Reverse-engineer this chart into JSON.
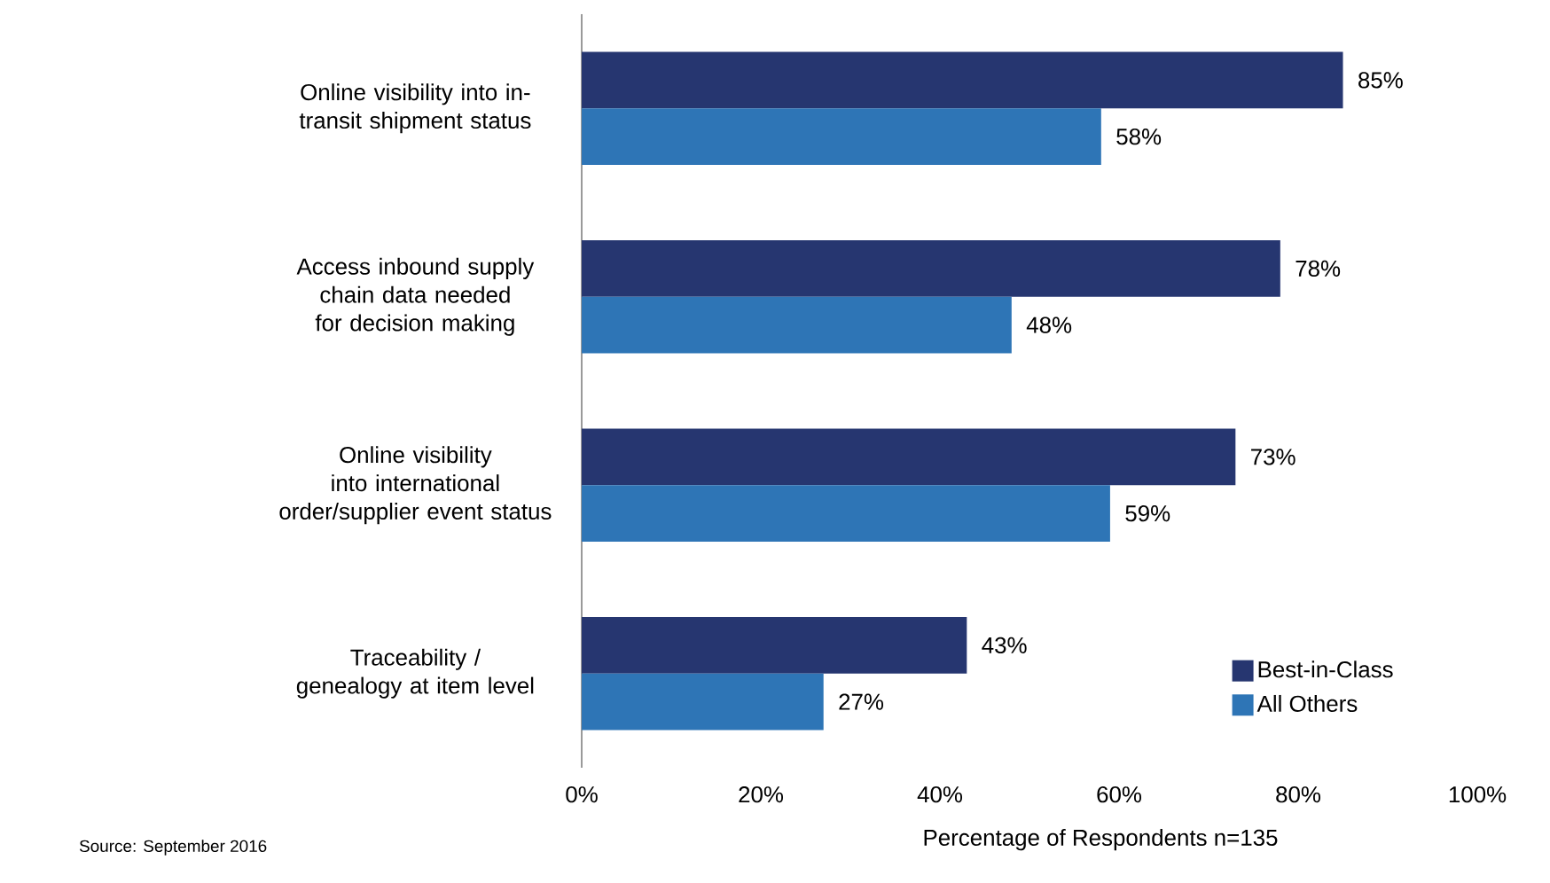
{
  "chart_data": {
    "type": "bar",
    "orientation": "horizontal",
    "categories": [
      "Online visibility into in-transit shipment status",
      "Access inbound supply chain data needed for decision making",
      "Online visibility into international order/supplier event status",
      "Traceability / genealogy at item level"
    ],
    "series": [
      {
        "name": "Best-in-Class",
        "color": "#263670",
        "values": [
          85,
          78,
          73,
          43
        ],
        "value_labels": [
          "85%",
          "78%",
          "73%",
          "43%"
        ]
      },
      {
        "name": "All Others",
        "color": "#2e75b6",
        "values": [
          58,
          48,
          59,
          27
        ],
        "value_labels": [
          "58%",
          "48%",
          "59%",
          "27%"
        ]
      }
    ],
    "xlim": [
      0,
      100
    ],
    "xticks": [
      {
        "value": 0,
        "label": "0%"
      },
      {
        "value": 20,
        "label": "20%"
      },
      {
        "value": 40,
        "label": "40%"
      },
      {
        "value": 60,
        "label": "60%"
      },
      {
        "value": 80,
        "label": "80%"
      },
      {
        "value": 100,
        "label": "100%"
      }
    ],
    "xlabel": "Percentage of Respondents  n=135",
    "legend": "bottom right",
    "grid": false,
    "annotations": [
      "Source: September 2016"
    ]
  }
}
